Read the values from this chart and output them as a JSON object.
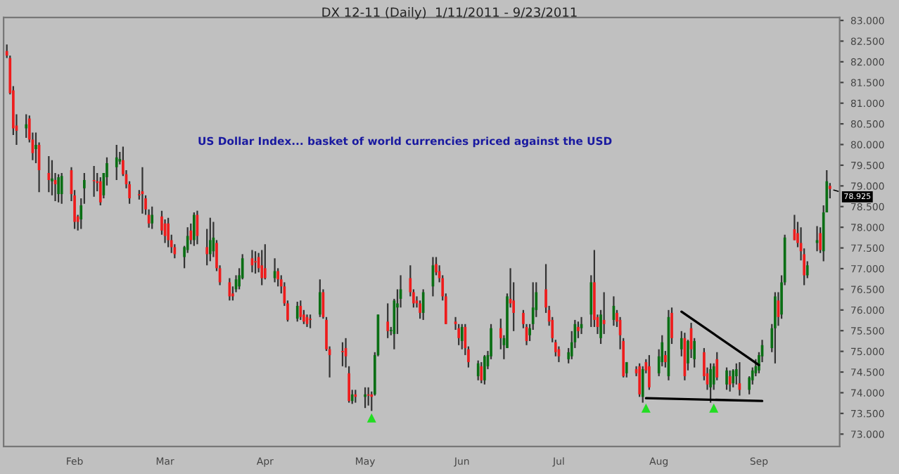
{
  "chart_data": {
    "type": "candlestick",
    "title": "DX 12-11 (Daily)  1/11/2011 - 9/23/2011",
    "annotations": [
      "US Dollar Index... basket of world currencies priced against the USD",
      {
        "text": "78.925",
        "x": "2011-09-23",
        "y": 78.925
      }
    ],
    "x": [
      "2011-01-11",
      "2011-01-12",
      "2011-01-13",
      "2011-01-14",
      "2011-01-17",
      "2011-01-18",
      "2011-01-19",
      "2011-01-20",
      "2011-01-21",
      "2011-01-24",
      "2011-01-25",
      "2011-01-26",
      "2011-01-27",
      "2011-01-28",
      "2011-01-31",
      "2011-02-01",
      "2011-02-02",
      "2011-02-03",
      "2011-02-04",
      "2011-02-07",
      "2011-02-08",
      "2011-02-09",
      "2011-02-10",
      "2011-02-11",
      "2011-02-14",
      "2011-02-15",
      "2011-02-16",
      "2011-02-17",
      "2011-02-18",
      "2011-02-21",
      "2011-02-22",
      "2011-02-23",
      "2011-02-24",
      "2011-02-25",
      "2011-02-28",
      "2011-03-01",
      "2011-03-02",
      "2011-03-03",
      "2011-03-04",
      "2011-03-07",
      "2011-03-08",
      "2011-03-09",
      "2011-03-10",
      "2011-03-11",
      "2011-03-14",
      "2011-03-15",
      "2011-03-16",
      "2011-03-17",
      "2011-03-18",
      "2011-03-21",
      "2011-03-22",
      "2011-03-23",
      "2011-03-24",
      "2011-03-25",
      "2011-03-28",
      "2011-03-29",
      "2011-03-30",
      "2011-03-31",
      "2011-04-01",
      "2011-04-04",
      "2011-04-05",
      "2011-04-06",
      "2011-04-07",
      "2011-04-08",
      "2011-04-11",
      "2011-04-12",
      "2011-04-13",
      "2011-04-14",
      "2011-04-15",
      "2011-04-18",
      "2011-04-19",
      "2011-04-20",
      "2011-04-21",
      "2011-04-25",
      "2011-04-26",
      "2011-04-27",
      "2011-04-28",
      "2011-04-29",
      "2011-05-02",
      "2011-05-03",
      "2011-05-04",
      "2011-05-05",
      "2011-05-06",
      "2011-05-09",
      "2011-05-10",
      "2011-05-11",
      "2011-05-12",
      "2011-05-13",
      "2011-05-16",
      "2011-05-17",
      "2011-05-18",
      "2011-05-19",
      "2011-05-20",
      "2011-05-23",
      "2011-05-24",
      "2011-05-25",
      "2011-05-26",
      "2011-05-27",
      "2011-05-30",
      "2011-05-31",
      "2011-06-01",
      "2011-06-02",
      "2011-06-03",
      "2011-06-06",
      "2011-06-07",
      "2011-06-08",
      "2011-06-09",
      "2011-06-10",
      "2011-06-13",
      "2011-06-14",
      "2011-06-15",
      "2011-06-16",
      "2011-06-17",
      "2011-06-20",
      "2011-06-21",
      "2011-06-22",
      "2011-06-23",
      "2011-06-24",
      "2011-06-27",
      "2011-06-28",
      "2011-06-29",
      "2011-06-30",
      "2011-07-01",
      "2011-07-04",
      "2011-07-05",
      "2011-07-06",
      "2011-07-07",
      "2011-07-08",
      "2011-07-11",
      "2011-07-12",
      "2011-07-13",
      "2011-07-14",
      "2011-07-15",
      "2011-07-18",
      "2011-07-19",
      "2011-07-20",
      "2011-07-21",
      "2011-07-22",
      "2011-07-25",
      "2011-07-26",
      "2011-07-27",
      "2011-07-28",
      "2011-07-29",
      "2011-08-01",
      "2011-08-02",
      "2011-08-03",
      "2011-08-04",
      "2011-08-05",
      "2011-08-08",
      "2011-08-09",
      "2011-08-10",
      "2011-08-11",
      "2011-08-12",
      "2011-08-15",
      "2011-08-16",
      "2011-08-17",
      "2011-08-18",
      "2011-08-19",
      "2011-08-22",
      "2011-08-23",
      "2011-08-24",
      "2011-08-25",
      "2011-08-26",
      "2011-08-29",
      "2011-08-30",
      "2011-08-31",
      "2011-09-01",
      "2011-09-02",
      "2011-09-05",
      "2011-09-06",
      "2011-09-07",
      "2011-09-08",
      "2011-09-09",
      "2011-09-12",
      "2011-09-13",
      "2011-09-14",
      "2011-09-15",
      "2011-09-16",
      "2011-09-19",
      "2011-09-20",
      "2011-09-21",
      "2011-09-22",
      "2011-09-23"
    ],
    "ohlc": [
      [
        82.26,
        82.42,
        82.09,
        82.15
      ],
      [
        82.09,
        82.15,
        81.21,
        81.24
      ],
      [
        81.31,
        81.41,
        80.23,
        80.39
      ],
      [
        80.46,
        80.73,
        79.99,
        80.33
      ],
      [
        80.39,
        80.73,
        80.16,
        80.49
      ],
      [
        80.63,
        80.7,
        80.05,
        80.12
      ],
      [
        80.12,
        80.29,
        79.62,
        79.79
      ],
      [
        79.89,
        80.29,
        79.55,
        79.99
      ],
      [
        79.99,
        80.05,
        78.85,
        79.38
      ],
      [
        79.31,
        79.72,
        78.85,
        79.14
      ],
      [
        79.11,
        79.62,
        78.77,
        79.18
      ],
      [
        79.14,
        79.31,
        78.63,
        79.04
      ],
      [
        78.8,
        79.28,
        78.6,
        79.21
      ],
      [
        78.8,
        79.31,
        78.57,
        79.24
      ],
      [
        79.38,
        79.45,
        78.63,
        78.8
      ],
      [
        78.77,
        78.9,
        77.96,
        78.13
      ],
      [
        78.26,
        78.3,
        77.92,
        78.13
      ],
      [
        78.19,
        78.7,
        77.96,
        78.53
      ],
      [
        78.94,
        79.31,
        78.57,
        79.14
      ],
      [
        79.14,
        79.48,
        78.74,
        79.11
      ],
      [
        79.11,
        79.31,
        78.87,
        79.07
      ],
      [
        79.11,
        79.21,
        78.53,
        78.6
      ],
      [
        78.77,
        79.31,
        78.7,
        79.31
      ],
      [
        79.21,
        79.69,
        79.01,
        79.55
      ],
      [
        79.45,
        79.99,
        79.14,
        79.69
      ],
      [
        79.59,
        79.82,
        79.52,
        79.65
      ],
      [
        79.62,
        79.95,
        79.24,
        79.28
      ],
      [
        79.28,
        79.38,
        78.94,
        79.04
      ],
      [
        79.04,
        79.11,
        78.57,
        78.7
      ],
      [
        78.8,
        78.9,
        78.67,
        78.77
      ],
      [
        78.87,
        79.45,
        78.33,
        78.8
      ],
      [
        78.7,
        78.77,
        78.3,
        78.43
      ],
      [
        78.3,
        78.43,
        77.99,
        78.09
      ],
      [
        78.09,
        78.5,
        77.96,
        78.3
      ],
      [
        78.26,
        78.4,
        77.82,
        77.92
      ],
      [
        78.09,
        78.19,
        77.62,
        77.79
      ],
      [
        78.09,
        78.23,
        77.52,
        77.69
      ],
      [
        77.69,
        77.82,
        77.38,
        77.52
      ],
      [
        77.52,
        77.59,
        77.25,
        77.35
      ],
      [
        77.28,
        77.55,
        77.01,
        77.52
      ],
      [
        77.45,
        78.0,
        77.38,
        77.79
      ],
      [
        77.92,
        78.09,
        77.59,
        77.69
      ],
      [
        77.69,
        78.36,
        77.55,
        78.3
      ],
      [
        78.3,
        78.4,
        77.59,
        77.79
      ],
      [
        77.52,
        77.96,
        77.08,
        77.35
      ],
      [
        77.35,
        78.23,
        77.18,
        77.69
      ],
      [
        77.42,
        78.13,
        77.28,
        77.75
      ],
      [
        77.62,
        77.69,
        76.94,
        77.01
      ],
      [
        77.01,
        77.08,
        76.6,
        76.67
      ],
      [
        76.67,
        76.77,
        76.23,
        76.33
      ],
      [
        76.4,
        76.57,
        76.23,
        76.33
      ],
      [
        76.5,
        76.84,
        76.43,
        76.74
      ],
      [
        76.57,
        77.01,
        76.5,
        76.84
      ],
      [
        76.77,
        77.35,
        76.74,
        77.25
      ],
      [
        77.25,
        77.45,
        76.91,
        77.08
      ],
      [
        77.18,
        77.42,
        76.88,
        77.15
      ],
      [
        77.28,
        77.38,
        76.91,
        77.01
      ],
      [
        77.08,
        77.45,
        76.6,
        76.77
      ],
      [
        77.01,
        77.59,
        76.74,
        76.77
      ],
      [
        76.77,
        77.25,
        76.67,
        76.94
      ],
      [
        76.94,
        77.01,
        76.57,
        76.74
      ],
      [
        76.74,
        76.84,
        76.4,
        76.57
      ],
      [
        76.57,
        76.67,
        76.1,
        76.16
      ],
      [
        76.16,
        76.23,
        75.72,
        75.76
      ],
      [
        75.79,
        76.2,
        75.72,
        76.1
      ],
      [
        76.1,
        76.23,
        75.76,
        75.83
      ],
      [
        75.89,
        76.0,
        75.66,
        75.72
      ],
      [
        75.83,
        75.89,
        75.59,
        75.66
      ],
      [
        75.79,
        75.89,
        75.56,
        75.76
      ],
      [
        75.89,
        76.74,
        75.83,
        76.43
      ],
      [
        76.43,
        76.5,
        75.79,
        75.83
      ],
      [
        75.76,
        75.83,
        75.01,
        75.05
      ],
      [
        75.05,
        75.12,
        74.37,
        74.91
      ],
      [
        75.01,
        75.22,
        74.64,
        74.98
      ],
      [
        75.08,
        75.32,
        74.61,
        74.88
      ],
      [
        74.47,
        74.64,
        73.76,
        73.8
      ],
      [
        73.8,
        74.07,
        73.73,
        73.96
      ],
      [
        73.96,
        74.07,
        73.76,
        73.9
      ],
      [
        73.9,
        74.13,
        73.63,
        73.96
      ],
      [
        73.96,
        74.13,
        73.69,
        73.93
      ],
      [
        73.96,
        74.03,
        73.56,
        73.9
      ],
      [
        73.96,
        74.98,
        73.93,
        74.91
      ],
      [
        74.91,
        75.89,
        74.88,
        75.89
      ],
      [
        75.72,
        76.16,
        75.32,
        75.49
      ],
      [
        75.49,
        75.59,
        75.39,
        75.52
      ],
      [
        75.42,
        76.27,
        75.05,
        76.23
      ],
      [
        76.06,
        76.5,
        75.42,
        76.16
      ],
      [
        76.27,
        76.84,
        76.06,
        76.5
      ],
      [
        76.77,
        77.08,
        76.33,
        76.43
      ],
      [
        76.43,
        76.5,
        76.06,
        76.16
      ],
      [
        76.23,
        76.33,
        76.06,
        76.16
      ],
      [
        76.16,
        76.23,
        75.79,
        75.93
      ],
      [
        75.93,
        76.5,
        75.76,
        76.43
      ],
      [
        76.57,
        77.28,
        76.33,
        77.08
      ],
      [
        77.11,
        77.28,
        76.84,
        76.91
      ],
      [
        76.94,
        77.08,
        76.67,
        76.77
      ],
      [
        76.77,
        76.84,
        76.23,
        76.33
      ],
      [
        76.33,
        76.4,
        75.66,
        75.66
      ],
      [
        75.72,
        75.83,
        75.52,
        75.66
      ],
      [
        75.56,
        75.66,
        75.15,
        75.32
      ],
      [
        75.25,
        75.66,
        75.05,
        75.59
      ],
      [
        75.59,
        75.66,
        74.91,
        75.08
      ],
      [
        75.05,
        75.12,
        74.61,
        74.74
      ],
      [
        74.4,
        74.78,
        74.3,
        74.71
      ],
      [
        74.64,
        74.74,
        74.23,
        74.3
      ],
      [
        74.3,
        74.91,
        74.2,
        74.88
      ],
      [
        74.64,
        75.01,
        74.57,
        74.91
      ],
      [
        74.88,
        75.66,
        74.81,
        75.56
      ],
      [
        75.56,
        75.79,
        75.05,
        75.32
      ],
      [
        75.15,
        75.39,
        74.81,
        75.32
      ],
      [
        75.08,
        76.4,
        75.08,
        76.33
      ],
      [
        76.27,
        77.01,
        76.06,
        76.16
      ],
      [
        76.23,
        76.67,
        75.49,
        75.93
      ],
      [
        75.93,
        76.0,
        75.56,
        75.66
      ],
      [
        75.59,
        75.66,
        75.15,
        75.25
      ],
      [
        75.39,
        75.66,
        75.25,
        75.56
      ],
      [
        75.66,
        76.67,
        75.52,
        76.06
      ],
      [
        76.0,
        76.67,
        75.83,
        76.43
      ],
      [
        76.5,
        77.11,
        75.93,
        76.06
      ],
      [
        76.0,
        76.1,
        75.62,
        75.72
      ],
      [
        75.76,
        75.83,
        75.22,
        75.32
      ],
      [
        75.22,
        75.28,
        74.88,
        74.98
      ],
      [
        75.05,
        75.12,
        74.74,
        74.88
      ],
      [
        74.81,
        75.08,
        74.71,
        74.98
      ],
      [
        74.88,
        75.49,
        74.81,
        75.22
      ],
      [
        75.22,
        75.76,
        75.08,
        75.66
      ],
      [
        75.59,
        75.72,
        75.32,
        75.49
      ],
      [
        75.56,
        75.83,
        75.42,
        75.66
      ],
      [
        75.89,
        76.84,
        75.59,
        76.67
      ],
      [
        76.67,
        77.45,
        75.59,
        75.76
      ],
      [
        75.83,
        75.89,
        75.42,
        75.59
      ],
      [
        75.32,
        76.0,
        75.18,
        75.89
      ],
      [
        75.76,
        76.43,
        75.42,
        75.66
      ],
      [
        75.76,
        76.33,
        75.62,
        76.1
      ],
      [
        75.93,
        76.0,
        75.59,
        75.72
      ],
      [
        75.76,
        75.83,
        75.05,
        75.39
      ],
      [
        75.25,
        75.32,
        74.37,
        74.4
      ],
      [
        74.47,
        74.74,
        74.37,
        74.74
      ],
      [
        74.57,
        74.64,
        74.4,
        74.47
      ],
      [
        74.64,
        74.71,
        73.9,
        73.96
      ],
      [
        73.9,
        74.64,
        73.76,
        74.57
      ],
      [
        74.74,
        74.81,
        74.47,
        74.54
      ],
      [
        74.64,
        74.91,
        74.07,
        74.13
      ],
      [
        74.47,
        75.05,
        74.4,
        74.88
      ],
      [
        74.74,
        75.39,
        74.64,
        75.22
      ],
      [
        74.91,
        75.01,
        74.61,
        74.74
      ],
      [
        74.4,
        76.0,
        74.3,
        75.83
      ],
      [
        75.93,
        76.06,
        75.18,
        75.32
      ],
      [
        75.05,
        75.49,
        74.88,
        75.32
      ],
      [
        75.32,
        75.45,
        74.3,
        74.4
      ],
      [
        74.71,
        75.28,
        74.54,
        75.25
      ],
      [
        75.56,
        75.69,
        74.84,
        75.05
      ],
      [
        74.81,
        75.32,
        74.61,
        75.25
      ],
      [
        74.98,
        75.08,
        74.3,
        74.4
      ],
      [
        74.47,
        74.61,
        74.07,
        74.2
      ],
      [
        74.13,
        74.71,
        73.76,
        74.57
      ],
      [
        74.2,
        74.71,
        74.07,
        74.64
      ],
      [
        74.81,
        74.98,
        74.3,
        74.37
      ],
      [
        74.2,
        74.61,
        74.07,
        74.54
      ],
      [
        74.4,
        74.54,
        74.03,
        74.2
      ],
      [
        74.23,
        74.57,
        74.13,
        74.54
      ],
      [
        74.4,
        74.71,
        74.2,
        74.57
      ],
      [
        74.23,
        74.74,
        73.93,
        74.07
      ],
      [
        74.07,
        74.4,
        73.96,
        74.37
      ],
      [
        74.3,
        74.61,
        74.2,
        74.54
      ],
      [
        74.47,
        74.81,
        74.4,
        74.64
      ],
      [
        74.54,
        74.98,
        74.47,
        74.91
      ],
      [
        74.88,
        75.28,
        74.74,
        75.15
      ],
      [
        75.08,
        75.66,
        74.98,
        75.56
      ],
      [
        75.56,
        76.43,
        74.71,
        76.33
      ],
      [
        76.23,
        76.43,
        75.62,
        75.83
      ],
      [
        75.89,
        76.84,
        75.79,
        76.67
      ],
      [
        76.67,
        77.82,
        76.6,
        77.75
      ],
      [
        77.95,
        78.3,
        77.69,
        77.69
      ],
      [
        77.86,
        78.13,
        77.52,
        77.62
      ],
      [
        77.62,
        78.0,
        77.2,
        77.42
      ],
      [
        77.35,
        77.49,
        76.6,
        76.84
      ],
      [
        76.84,
        77.18,
        76.77,
        77.08
      ],
      [
        77.62,
        78.03,
        77.42,
        77.69
      ],
      [
        77.86,
        78.0,
        77.38,
        77.45
      ],
      [
        77.42,
        78.53,
        77.18,
        78.36
      ],
      [
        78.36,
        79.38,
        78.36,
        79.11
      ],
      [
        79.0,
        79.07,
        78.7,
        78.925
      ]
    ],
    "series": [
      {
        "type": "line",
        "color": "#000000",
        "x": [
          "2011-08-08",
          "2011-09-01"
        ],
        "values": [
          75.96,
          74.67
        ]
      },
      {
        "type": "line",
        "color": "#000000",
        "x": [
          "2011-07-28",
          "2011-09-02"
        ],
        "values": [
          73.87,
          73.8
        ]
      },
      {
        "type": "scatter",
        "color": "#22dd22",
        "marker": "triangle",
        "x": [
          "2011-05-04",
          "2011-07-28",
          "2011-08-18"
        ],
        "values": [
          73.39,
          73.63,
          73.63
        ]
      }
    ],
    "xlim": [
      "2011-01-10",
      "2011-09-26"
    ],
    "xticks": [
      {
        "value": "2011-02-01",
        "label": "Feb"
      },
      {
        "value": "2011-03-01",
        "label": "Mar"
      },
      {
        "value": "2011-04-01",
        "label": "Apr"
      },
      {
        "value": "2011-05-02",
        "label": "May"
      },
      {
        "value": "2011-06-01",
        "label": "Jun"
      },
      {
        "value": "2011-07-01",
        "label": "Jul"
      },
      {
        "value": "2011-08-01",
        "label": "Aug"
      },
      {
        "value": "2011-09-01",
        "label": "Sep"
      }
    ],
    "ylim": [
      72.7,
      83.07
    ],
    "yticks": [
      {
        "value": 73,
        "label": "73.000"
      },
      {
        "value": 73.5,
        "label": "73.500"
      },
      {
        "value": 74,
        "label": "74.000"
      },
      {
        "value": 74.5,
        "label": "74.500"
      },
      {
        "value": 75,
        "label": "75.000"
      },
      {
        "value": 75.5,
        "label": "75.500"
      },
      {
        "value": 76,
        "label": "76.000"
      },
      {
        "value": 76.5,
        "label": "76.500"
      },
      {
        "value": 77,
        "label": "77.000"
      },
      {
        "value": 77.5,
        "label": "77.500"
      },
      {
        "value": 78,
        "label": "78.000"
      },
      {
        "value": 78.5,
        "label": "78.500"
      },
      {
        "value": 79,
        "label": "79.000"
      },
      {
        "value": 79.5,
        "label": "79.500"
      },
      {
        "value": 80,
        "label": "80.000"
      },
      {
        "value": 80.5,
        "label": "80.500"
      },
      {
        "value": 81,
        "label": "81.000"
      },
      {
        "value": 81.5,
        "label": "81.500"
      },
      {
        "value": 82,
        "label": "82.000"
      },
      {
        "value": 82.5,
        "label": "82.500"
      },
      {
        "value": 83,
        "label": "83.000"
      }
    ]
  }
}
